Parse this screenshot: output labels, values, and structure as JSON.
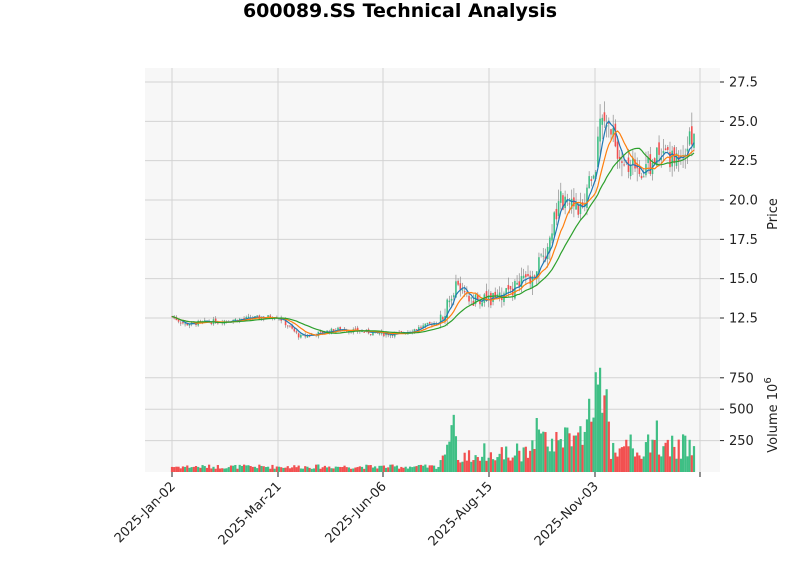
{
  "title": "600089.SS Technical Analysis",
  "colors": {
    "up": "#3fbf85",
    "down": "#f25050",
    "wick": "#8c8c8c",
    "ma_fast": "#1f77b4",
    "ma_mid": "#ff7f0e",
    "ma_slow": "#2ca02c",
    "panel_bg": "#f7f7f7",
    "grid": "#d3d3d3"
  },
  "price_axis": {
    "label": "Price",
    "ticks": [
      "12.5",
      "15.0",
      "17.5",
      "20.0",
      "22.5",
      "25.0",
      "27.5"
    ]
  },
  "volume_axis": {
    "label": "Volume  10",
    "exponent": "6",
    "ticks": [
      "250",
      "500",
      "750"
    ]
  },
  "x_axis": {
    "ticks": [
      "2025-Jan-02",
      "2025-Mar-21",
      "2025-Jun-06",
      "2025-Aug-15",
      "2025-Nov-03"
    ]
  },
  "chart_data": {
    "type": "candlestick",
    "title": "600089.SS Technical Analysis",
    "xlabel": "",
    "ylabel": "Price",
    "ylabel_volume": "Volume 10^6",
    "ylim": [
      10.0,
      28.3
    ],
    "ylim_volume": [
      0,
      830
    ],
    "x_tick_labels": [
      "2025-Jan-02",
      "2025-Mar-21",
      "2025-Jun-06",
      "2025-Aug-15",
      "2025-Nov-03"
    ],
    "y_tick_labels": [
      12.5,
      15.0,
      17.5,
      20.0,
      22.5,
      25.0,
      27.5
    ],
    "volume_tick_labels": [
      250,
      500,
      750
    ],
    "grid": true,
    "moving_averages": [
      "fast MA (blue)",
      "mid MA (orange)",
      "slow MA (green)"
    ],
    "close_keypoints": [
      {
        "x": "2025-Jan-02",
        "close": 12.6
      },
      {
        "x": "2025-Jan-20",
        "close": 12.1
      },
      {
        "x": "2025-Feb-10",
        "close": 12.2
      },
      {
        "x": "2025-Mar-10",
        "close": 12.5
      },
      {
        "x": "2025-Mar-21",
        "close": 12.6
      },
      {
        "x": "2025-Apr-08",
        "close": 11.3
      },
      {
        "x": "2025-May-10",
        "close": 11.8
      },
      {
        "x": "2025-Jun-06",
        "close": 11.5
      },
      {
        "x": "2025-Jun-20",
        "close": 11.5
      },
      {
        "x": "2025-Jul-10",
        "close": 12.3
      },
      {
        "x": "2025-Jul-18",
        "close": 14.5
      },
      {
        "x": "2025-Jul-28",
        "close": 13.6
      },
      {
        "x": "2025-Aug-15",
        "close": 13.6
      },
      {
        "x": "2025-Sep-01",
        "close": 14.3
      },
      {
        "x": "2025-Sep-15",
        "close": 15.0
      },
      {
        "x": "2025-Sep-25",
        "close": 16.5
      },
      {
        "x": "2025-Oct-10",
        "close": 20.0
      },
      {
        "x": "2025-Oct-25",
        "close": 19.5
      },
      {
        "x": "2025-Nov-03",
        "close": 22.0
      },
      {
        "x": "2025-Nov-10",
        "close": 26.0
      },
      {
        "x": "2025-Nov-20",
        "close": 22.5
      },
      {
        "x": "2025-Dec-01",
        "close": 21.8
      },
      {
        "x": "2025-Dec-10",
        "close": 22.8
      },
      {
        "x": "2025-Dec-20",
        "close": 22.7
      },
      {
        "x": "2025-Dec-31",
        "close": 24.3
      }
    ],
    "volume_peaks_millions": [
      {
        "x": "2025-Jul-18",
        "volume": 455
      },
      {
        "x": "2025-Oct-05",
        "volume": 430
      },
      {
        "x": "2025-Nov-06",
        "volume": 830
      },
      {
        "x": "2025-Nov-09",
        "volume": 610
      },
      {
        "x": "2025-Dec-08",
        "volume": 410
      }
    ]
  }
}
